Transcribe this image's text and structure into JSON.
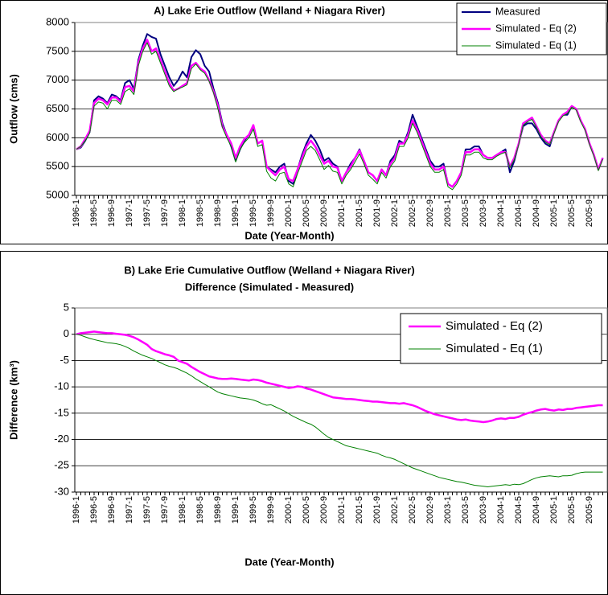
{
  "chart_data": [
    {
      "type": "line",
      "title": "A) Lake Erie Outflow (Welland + Niagara River)",
      "x_label": "Date (Year-Month)",
      "y_label": "Outflow (cms)",
      "categories": [
        "1996-1",
        null,
        null,
        null,
        "1996-5",
        null,
        null,
        null,
        "1996-9",
        null,
        null,
        null,
        "1997-1",
        null,
        null,
        null,
        "1997-5",
        null,
        null,
        null,
        "1997-9",
        null,
        null,
        null,
        "1998-1",
        null,
        null,
        null,
        "1998-5",
        null,
        null,
        null,
        "1998-9",
        null,
        null,
        null,
        "1999-1",
        null,
        null,
        null,
        "1999-5",
        null,
        null,
        null,
        "1999-9",
        null,
        null,
        null,
        "2000-1",
        null,
        null,
        null,
        "2000-5",
        null,
        null,
        null,
        "2000-9",
        null,
        null,
        null,
        "2001-1",
        null,
        null,
        null,
        "2001-5",
        null,
        null,
        null,
        "2001-9",
        null,
        null,
        null,
        "2002-1",
        null,
        null,
        null,
        "2002-5",
        null,
        null,
        null,
        "2002-9",
        null,
        null,
        null,
        "2003-1",
        null,
        null,
        null,
        "2003-5",
        null,
        null,
        null,
        "2003-9",
        null,
        null,
        null,
        "2004-1",
        null,
        null,
        null,
        "2004-5",
        null,
        null,
        null,
        "2004-9",
        null,
        null,
        null,
        "2005-1",
        null,
        null,
        null,
        "2005-5",
        null,
        null,
        null,
        "2005-9",
        null,
        null,
        null
      ],
      "series": [
        {
          "name": "Measured",
          "color": "#000080",
          "values": [
            5800,
            5830,
            5950,
            6100,
            6650,
            6720,
            6680,
            6600,
            6750,
            6720,
            6650,
            6950,
            7000,
            6850,
            7350,
            7600,
            7800,
            7750,
            7720,
            7450,
            7250,
            7050,
            6900,
            7000,
            7150,
            7050,
            7400,
            7520,
            7450,
            7250,
            7150,
            6850,
            6600,
            6250,
            6050,
            5850,
            5600,
            5800,
            5950,
            6050,
            6200,
            5900,
            5950,
            5500,
            5450,
            5400,
            5500,
            5550,
            5250,
            5200,
            5450,
            5700,
            5900,
            6050,
            5950,
            5800,
            5600,
            5650,
            5550,
            5500,
            5250,
            5400,
            5550,
            5650,
            5800,
            5600,
            5400,
            5350,
            5250,
            5450,
            5350,
            5600,
            5700,
            5950,
            5900,
            6100,
            6400,
            6200,
            6000,
            5800,
            5600,
            5500,
            5500,
            5550,
            5200,
            5150,
            5250,
            5400,
            5800,
            5800,
            5850,
            5850,
            5700,
            5650,
            5650,
            5700,
            5750,
            5800,
            5400,
            5600,
            5900,
            6200,
            6250,
            6250,
            6150,
            6000,
            5900,
            5850,
            6100,
            6300,
            6400,
            6400,
            6550,
            6500,
            6300,
            6150,
            5900,
            5700,
            5450,
            5650
          ]
        },
        {
          "name": "Simulated - Eq (2)",
          "color": "#ff00ff",
          "values": [
            5800,
            5850,
            5980,
            6120,
            6600,
            6680,
            6650,
            6580,
            6700,
            6700,
            6620,
            6880,
            6900,
            6800,
            7300,
            7550,
            7700,
            7500,
            7550,
            7350,
            7150,
            6950,
            6820,
            6850,
            6900,
            6950,
            7250,
            7300,
            7200,
            7150,
            7000,
            6800,
            6550,
            6200,
            6050,
            5900,
            5650,
            5850,
            5980,
            6050,
            6220,
            5900,
            5950,
            5500,
            5420,
            5350,
            5450,
            5500,
            5280,
            5250,
            5450,
            5650,
            5850,
            5950,
            5850,
            5700,
            5550,
            5600,
            5500,
            5480,
            5250,
            5400,
            5500,
            5650,
            5780,
            5600,
            5400,
            5350,
            5250,
            5450,
            5350,
            5550,
            5650,
            5900,
            5900,
            6050,
            6300,
            6150,
            5950,
            5750,
            5550,
            5450,
            5450,
            5500,
            5200,
            5150,
            5250,
            5400,
            5750,
            5750,
            5800,
            5800,
            5700,
            5650,
            5650,
            5700,
            5750,
            5750,
            5500,
            5650,
            5900,
            6250,
            6300,
            6350,
            6200,
            6050,
            5950,
            5900,
            6100,
            6300,
            6400,
            6450,
            6550,
            6500,
            6300,
            6150,
            5900,
            5700,
            5450,
            5650
          ]
        },
        {
          "name": "Simulated - Eq (1)",
          "color": "#008000",
          "values": [
            5800,
            5850,
            5950,
            6080,
            6550,
            6620,
            6600,
            6500,
            6650,
            6650,
            6580,
            6800,
            6850,
            6750,
            7250,
            7500,
            7650,
            7450,
            7500,
            7300,
            7100,
            6900,
            6800,
            6850,
            6880,
            6920,
            7200,
            7280,
            7180,
            7120,
            6980,
            6780,
            6500,
            6180,
            6000,
            5850,
            5580,
            5800,
            5920,
            6000,
            6150,
            5850,
            5880,
            5420,
            5300,
            5250,
            5380,
            5400,
            5200,
            5150,
            5380,
            5580,
            5780,
            5850,
            5780,
            5620,
            5450,
            5520,
            5420,
            5400,
            5200,
            5350,
            5450,
            5580,
            5720,
            5550,
            5350,
            5280,
            5200,
            5400,
            5300,
            5500,
            5600,
            5850,
            5850,
            6000,
            6250,
            6100,
            5900,
            5700,
            5500,
            5400,
            5400,
            5450,
            5150,
            5100,
            5200,
            5350,
            5700,
            5700,
            5750,
            5750,
            5650,
            5620,
            5620,
            5680,
            5720,
            5750,
            5480,
            5620,
            5880,
            6220,
            6280,
            6320,
            6180,
            6020,
            5930,
            5880,
            6080,
            6280,
            6380,
            6420,
            6530,
            6480,
            6280,
            6130,
            5880,
            5680,
            5430,
            5630
          ]
        }
      ],
      "ylim": [
        5000,
        8000
      ],
      "yticks": [
        5000,
        5500,
        6000,
        6500,
        7000,
        7500,
        8000
      ],
      "grid": true,
      "legend": "upper right"
    },
    {
      "type": "line",
      "title": "B) Lake Erie Cumulative Outflow (Welland + Niagara River)",
      "subtitle": "Difference (Simulated - Measured)",
      "x_label": "Date (Year-Month)",
      "y_label": "Difference (km³)",
      "categories": [
        "1996-1",
        null,
        null,
        null,
        "1996-5",
        null,
        null,
        null,
        "1996-9",
        null,
        null,
        null,
        "1997-1",
        null,
        null,
        null,
        "1997-5",
        null,
        null,
        null,
        "1997-9",
        null,
        null,
        null,
        "1998-1",
        null,
        null,
        null,
        "1998-5",
        null,
        null,
        null,
        "1998-9",
        null,
        null,
        null,
        "1999-1",
        null,
        null,
        null,
        "1999-5",
        null,
        null,
        null,
        "1999-9",
        null,
        null,
        null,
        "2000-1",
        null,
        null,
        null,
        "2000-5",
        null,
        null,
        null,
        "2000-9",
        null,
        null,
        null,
        "2001-1",
        null,
        null,
        null,
        "2001-5",
        null,
        null,
        null,
        "2001-9",
        null,
        null,
        null,
        "2002-1",
        null,
        null,
        null,
        "2002-5",
        null,
        null,
        null,
        "2002-9",
        null,
        null,
        null,
        "2003-1",
        null,
        null,
        null,
        "2003-5",
        null,
        null,
        null,
        "2003-9",
        null,
        null,
        null,
        "2004-1",
        null,
        null,
        null,
        "2004-5",
        null,
        null,
        null,
        "2004-9",
        null,
        null,
        null,
        "2005-1",
        null,
        null,
        null,
        "2005-5",
        null,
        null,
        null,
        "2005-9",
        null,
        null,
        null
      ],
      "series": [
        {
          "name": "Simulated - Eq (2)",
          "color": "#ff00ff",
          "values": [
            0,
            0.2,
            0.3,
            0.4,
            0.5,
            0.4,
            0.3,
            0.2,
            0.2,
            0.1,
            0,
            -0.1,
            -0.3,
            -0.6,
            -1,
            -1.5,
            -2,
            -2.8,
            -3.2,
            -3.5,
            -3.8,
            -4,
            -4.3,
            -5,
            -5.3,
            -5.6,
            -6.2,
            -6.7,
            -7.2,
            -7.6,
            -8,
            -8.2,
            -8.4,
            -8.5,
            -8.5,
            -8.4,
            -8.5,
            -8.6,
            -8.7,
            -8.8,
            -8.6,
            -8.7,
            -8.9,
            -9.2,
            -9.4,
            -9.6,
            -9.8,
            -10,
            -10.2,
            -10.1,
            -9.9,
            -10,
            -10.3,
            -10.5,
            -10.8,
            -11.1,
            -11.4,
            -11.7,
            -12,
            -12.1,
            -12.2,
            -12.3,
            -12.3,
            -12.4,
            -12.5,
            -12.6,
            -12.7,
            -12.8,
            -12.8,
            -12.9,
            -13,
            -13.1,
            -13.1,
            -13.2,
            -13.1,
            -13.3,
            -13.5,
            -13.8,
            -14.2,
            -14.6,
            -14.9,
            -15.2,
            -15.4,
            -15.6,
            -15.8,
            -16,
            -16.2,
            -16.3,
            -16.2,
            -16.4,
            -16.5,
            -16.6,
            -16.7,
            -16.6,
            -16.4,
            -16.1,
            -16,
            -16.1,
            -15.9,
            -15.9,
            -15.7,
            -15.3,
            -15,
            -14.8,
            -14.5,
            -14.3,
            -14.2,
            -14.4,
            -14.5,
            -14.3,
            -14.4,
            -14.2,
            -14.2,
            -14,
            -13.9,
            -13.8,
            -13.7,
            -13.6,
            -13.5,
            -13.5
          ]
        },
        {
          "name": "Simulated - Eq (1)",
          "color": "#008000",
          "values": [
            0,
            -0.2,
            -0.5,
            -0.8,
            -1,
            -1.2,
            -1.4,
            -1.6,
            -1.7,
            -1.8,
            -2,
            -2.3,
            -2.7,
            -3.2,
            -3.6,
            -4,
            -4.3,
            -4.6,
            -5,
            -5.4,
            -5.8,
            -6.1,
            -6.3,
            -6.6,
            -7,
            -7.4,
            -7.9,
            -8.5,
            -9,
            -9.5,
            -10,
            -10.5,
            -11,
            -11.3,
            -11.5,
            -11.7,
            -11.9,
            -12.1,
            -12.2,
            -12.3,
            -12.5,
            -12.8,
            -13.2,
            -13.5,
            -13.4,
            -13.8,
            -14.2,
            -14.6,
            -15.1,
            -15.6,
            -16,
            -16.4,
            -16.8,
            -17.1,
            -17.6,
            -18.3,
            -19,
            -19.6,
            -20,
            -20.4,
            -20.8,
            -21.2,
            -21.4,
            -21.6,
            -21.8,
            -22,
            -22.2,
            -22.4,
            -22.6,
            -23,
            -23.3,
            -23.5,
            -23.8,
            -24.2,
            -24.6,
            -25,
            -25.4,
            -25.7,
            -26,
            -26.3,
            -26.6,
            -26.9,
            -27.2,
            -27.4,
            -27.6,
            -27.8,
            -28,
            -28.1,
            -28.3,
            -28.5,
            -28.7,
            -28.8,
            -28.9,
            -29,
            -28.9,
            -28.8,
            -28.7,
            -28.6,
            -28.7,
            -28.5,
            -28.6,
            -28.4,
            -28,
            -27.6,
            -27.3,
            -27.1,
            -27,
            -26.9,
            -27,
            -27.1,
            -26.9,
            -26.9,
            -26.8,
            -26.5,
            -26.3,
            -26.2,
            -26.2,
            -26.2,
            -26.2,
            -26.2
          ]
        }
      ],
      "ylim": [
        -30,
        5
      ],
      "yticks": [
        -30,
        -25,
        -20,
        -15,
        -10,
        -5,
        0,
        5
      ],
      "grid": true,
      "legend": "upper right"
    }
  ]
}
